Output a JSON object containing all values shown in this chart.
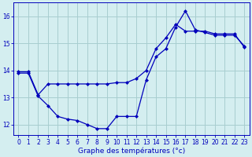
{
  "xlabel": "Graphe des températures (°c)",
  "bg_color": "#d4eef0",
  "grid_color": "#a8cdd0",
  "line_color": "#0000bb",
  "ylim": [
    11.6,
    16.5
  ],
  "xlim": [
    -0.5,
    23.5
  ],
  "yticks": [
    12,
    13,
    14,
    15,
    16
  ],
  "xticks": [
    0,
    1,
    2,
    3,
    4,
    5,
    6,
    7,
    8,
    9,
    10,
    11,
    12,
    13,
    14,
    15,
    16,
    17,
    18,
    19,
    20,
    21,
    22,
    23
  ],
  "series1_x": [
    0,
    1,
    2,
    3,
    4,
    5,
    6,
    7,
    8,
    9,
    10,
    11,
    12,
    13,
    14,
    15,
    16,
    17,
    18,
    19,
    20,
    21,
    22,
    23
  ],
  "series1_y": [
    13.9,
    13.9,
    13.05,
    12.7,
    12.3,
    12.2,
    12.15,
    12.0,
    11.85,
    11.85,
    12.3,
    12.3,
    12.3,
    13.65,
    14.5,
    14.8,
    15.6,
    16.2,
    15.5,
    15.4,
    15.3,
    15.3,
    15.3,
    14.9
  ],
  "series2_x": [
    0,
    1,
    2,
    3,
    4,
    5,
    6,
    7,
    8,
    9,
    10,
    11,
    12,
    13,
    14,
    15,
    16,
    17,
    18,
    19,
    20,
    21,
    22,
    23
  ],
  "series2_y": [
    13.95,
    13.95,
    13.1,
    13.5,
    13.5,
    13.5,
    13.5,
    13.5,
    13.5,
    13.5,
    13.55,
    13.55,
    13.7,
    14.0,
    14.8,
    15.2,
    15.7,
    15.45,
    15.45,
    15.45,
    15.35,
    15.35,
    15.35,
    14.85
  ]
}
